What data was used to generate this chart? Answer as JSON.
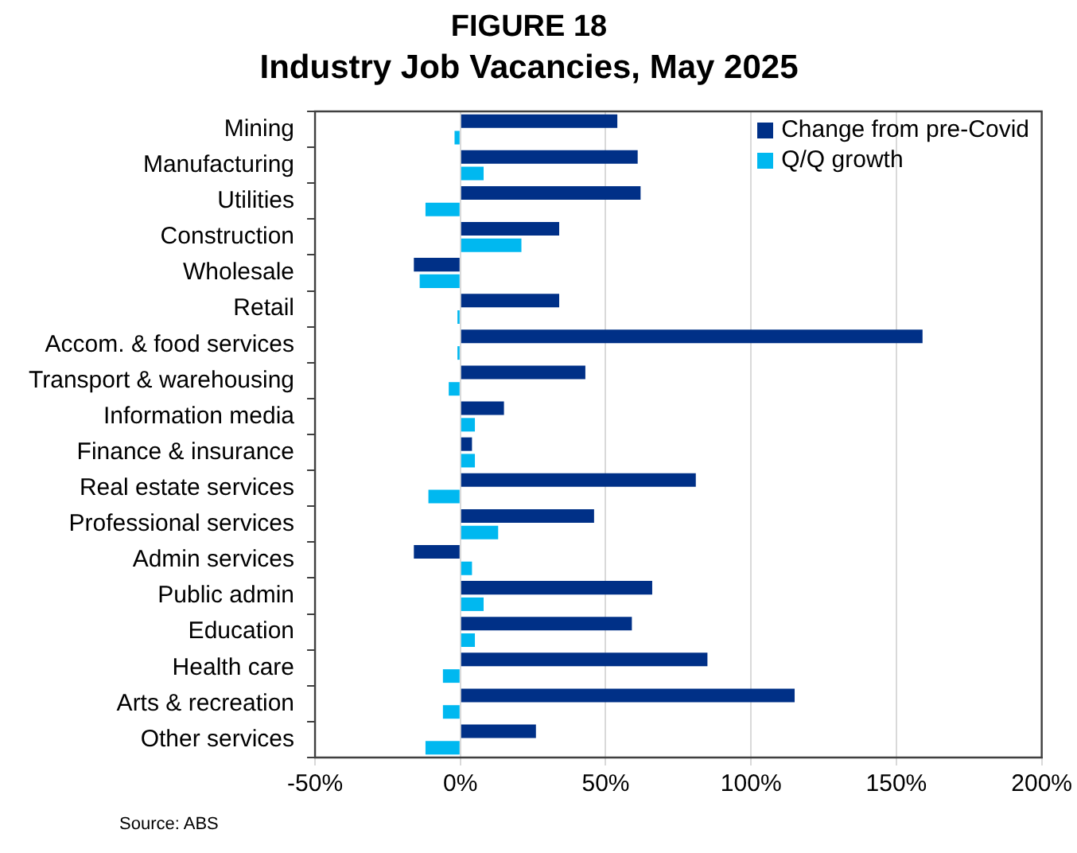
{
  "chart_data": {
    "type": "bar",
    "orientation": "horizontal",
    "title": "FIGURE 18",
    "subtitle": "Industry Job Vacancies, May 2025",
    "categories": [
      "Mining",
      "Manufacturing",
      "Utilities",
      "Construction",
      "Wholesale",
      "Retail",
      "Accom. & food services",
      "Transport & warehousing",
      "Information media",
      "Finance & insurance",
      "Real estate services",
      "Professional services",
      "Admin services",
      "Public admin",
      "Education",
      "Health care",
      "Arts & recreation",
      "Other services"
    ],
    "series": [
      {
        "name": "Change from pre-Covid",
        "color": "#003087",
        "values": [
          54,
          61,
          62,
          34,
          -16,
          34,
          159,
          43,
          15,
          4,
          81,
          46,
          -16,
          66,
          59,
          85,
          115,
          26
        ]
      },
      {
        "name": "Q/Q growth",
        "color": "#00b8f0",
        "values": [
          -2,
          8,
          -12,
          21,
          -14,
          -1,
          -1,
          -4,
          5,
          5,
          -11,
          13,
          4,
          8,
          5,
          -6,
          -6,
          -12
        ]
      }
    ],
    "xlim": [
      -50,
      200
    ],
    "xticks": [
      {
        "value": -50,
        "label": "-50%"
      },
      {
        "value": 0,
        "label": "0%"
      },
      {
        "value": 50,
        "label": "50%"
      },
      {
        "value": 100,
        "label": "100%"
      },
      {
        "value": 150,
        "label": "150%"
      },
      {
        "value": 200,
        "label": "200%"
      }
    ],
    "grid": "x",
    "legend": "top right",
    "annotations": [
      "Source: ABS"
    ]
  }
}
